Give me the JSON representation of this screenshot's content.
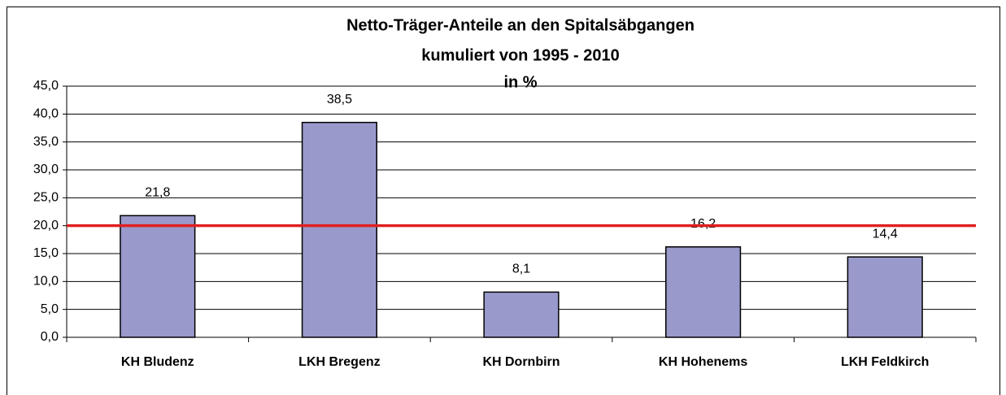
{
  "chart_data": {
    "type": "bar",
    "title": [
      "Netto-Träger-Anteile an den Spitalsäbgangen",
      "kumuliert von 1995 - 2010",
      "in %"
    ],
    "categories": [
      "KH Bludenz",
      "LKH Bregenz",
      "KH Dornbirn",
      "KH Hohenems",
      "LKH Feldkirch"
    ],
    "values": [
      21.8,
      38.5,
      8.1,
      16.2,
      14.4
    ],
    "value_labels": [
      "21,8",
      "38,5",
      "8,1",
      "16,2",
      "14,4"
    ],
    "color": "#9999cc",
    "ylim": [
      0,
      45
    ],
    "yticks": [
      {
        "value": 0,
        "label": "0,0"
      },
      {
        "value": 5,
        "label": "5,0"
      },
      {
        "value": 10,
        "label": "10,0"
      },
      {
        "value": 15,
        "label": "15,0"
      },
      {
        "value": 20,
        "label": "20,0"
      },
      {
        "value": 25,
        "label": "25,0"
      },
      {
        "value": 30,
        "label": "30,0"
      },
      {
        "value": 35,
        "label": "35,0"
      },
      {
        "value": 40,
        "label": "40,0"
      },
      {
        "value": 45,
        "label": "45,0"
      }
    ],
    "grid": true,
    "reference_line": {
      "value": 20,
      "color": "#e02020"
    }
  }
}
